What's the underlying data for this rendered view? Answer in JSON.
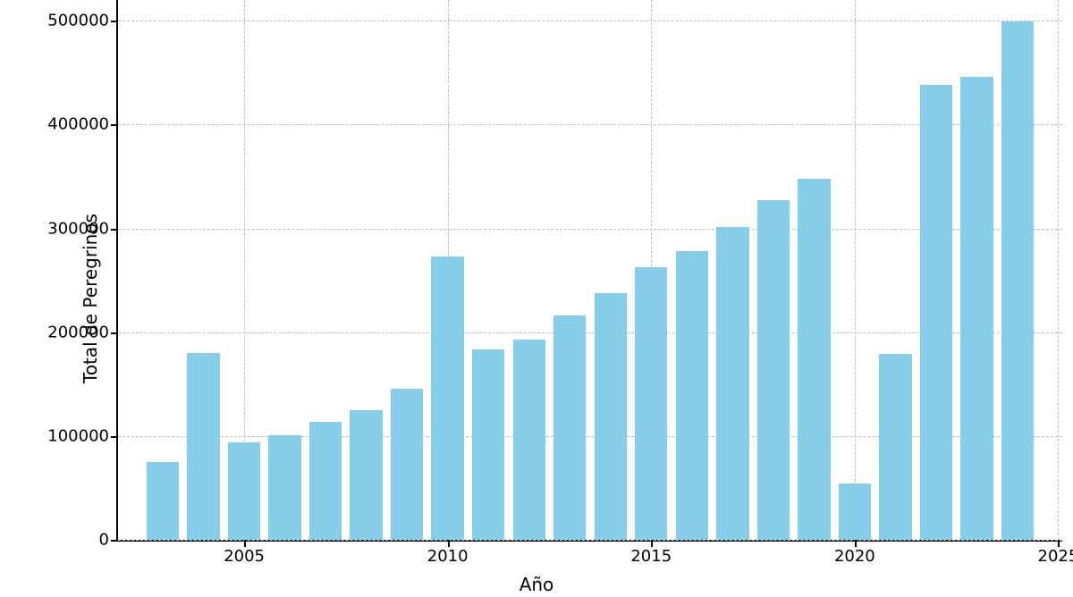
{
  "chart": {
    "type": "bar",
    "xlabel": "Año",
    "ylabel": "Total de Peregrinos",
    "label_fontsize": 20,
    "tick_fontsize": 18,
    "background_color": "#ffffff",
    "grid_color": "#bdbdbd",
    "grid_dash": true,
    "axis_color": "#000000",
    "bar_color": "#87ceeb",
    "bar_width": 0.8,
    "xlim": [
      2001.9,
      2025.1
    ],
    "ylim": [
      0,
      520000
    ],
    "yticks": [
      0,
      100000,
      200000,
      300000,
      400000,
      500000
    ],
    "xticks": [
      2005,
      2010,
      2015,
      2020,
      2025
    ],
    "years": [
      2003,
      2004,
      2005,
      2006,
      2007,
      2008,
      2009,
      2010,
      2011,
      2012,
      2013,
      2014,
      2015,
      2016,
      2017,
      2018,
      2019,
      2020,
      2021,
      2022,
      2023,
      2024
    ],
    "values": [
      74614,
      179944,
      93924,
      100377,
      114026,
      125141,
      145877,
      272703,
      183366,
      192488,
      215880,
      237886,
      262516,
      278041,
      301036,
      327378,
      347578,
      54144,
      178912,
      438307,
      446035,
      499241
    ]
  }
}
